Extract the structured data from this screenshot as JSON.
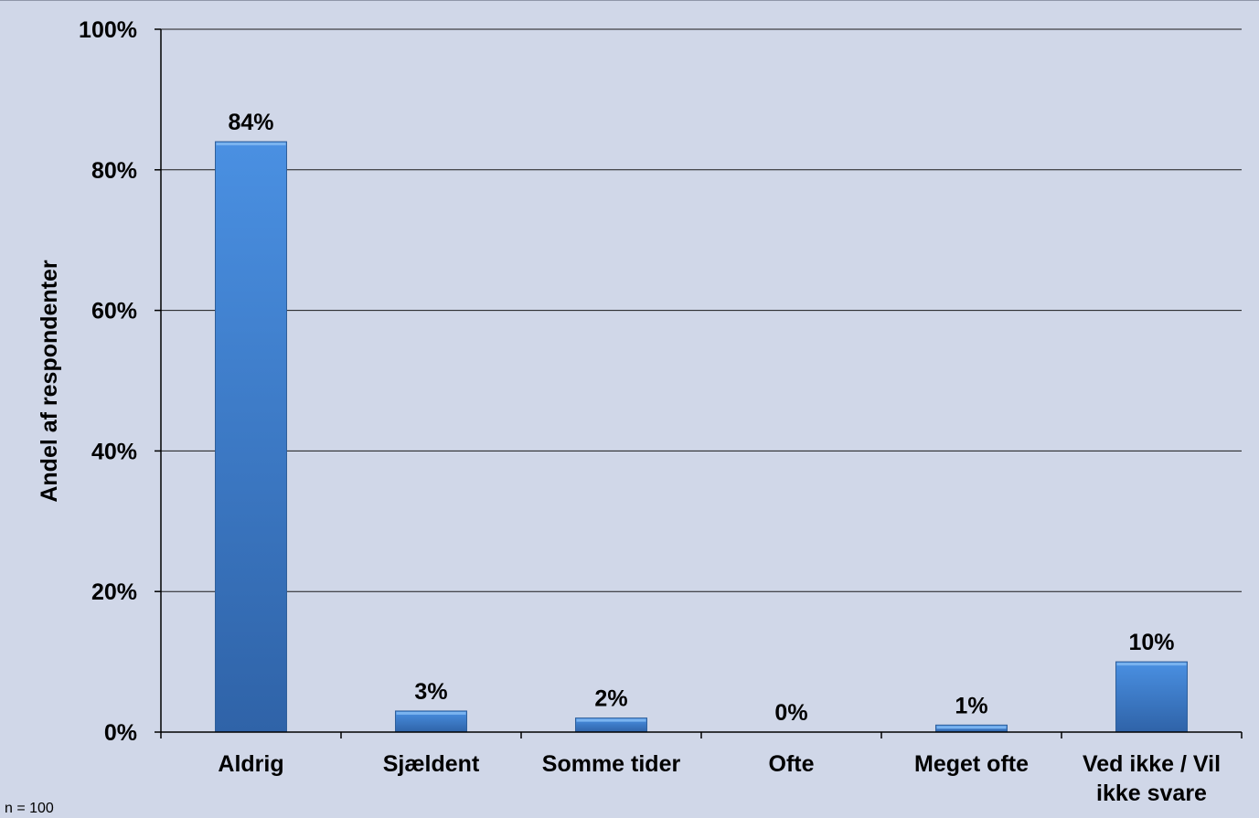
{
  "chart_data": {
    "type": "bar",
    "categories": [
      "Aldrig",
      "Sjældent",
      "Somme tider",
      "Ofte",
      "Meget ofte",
      "Ved ikke / Vil ikke svare"
    ],
    "category_lines": [
      [
        "Aldrig"
      ],
      [
        "Sjældent"
      ],
      [
        "Somme tider"
      ],
      [
        "Ofte"
      ],
      [
        "Meget ofte"
      ],
      [
        "Ved ikke / Vil",
        "ikke svare"
      ]
    ],
    "values": [
      84,
      3,
      2,
      0,
      1,
      10
    ],
    "data_labels": [
      "84%",
      "3%",
      "2%",
      "0%",
      "1%",
      "10%"
    ],
    "ylabel": "Andel af respondenter",
    "ylim": [
      0,
      100
    ],
    "yticks": [
      0,
      20,
      40,
      60,
      80,
      100
    ],
    "ytick_labels": [
      "0%",
      "20%",
      "40%",
      "60%",
      "80%",
      "100%"
    ],
    "grid": true,
    "legend": "none",
    "bar_color_top": "#4a90e2",
    "bar_color_bottom": "#2f63a8",
    "background": "#d0d7e8"
  },
  "footnote": "n = 100"
}
